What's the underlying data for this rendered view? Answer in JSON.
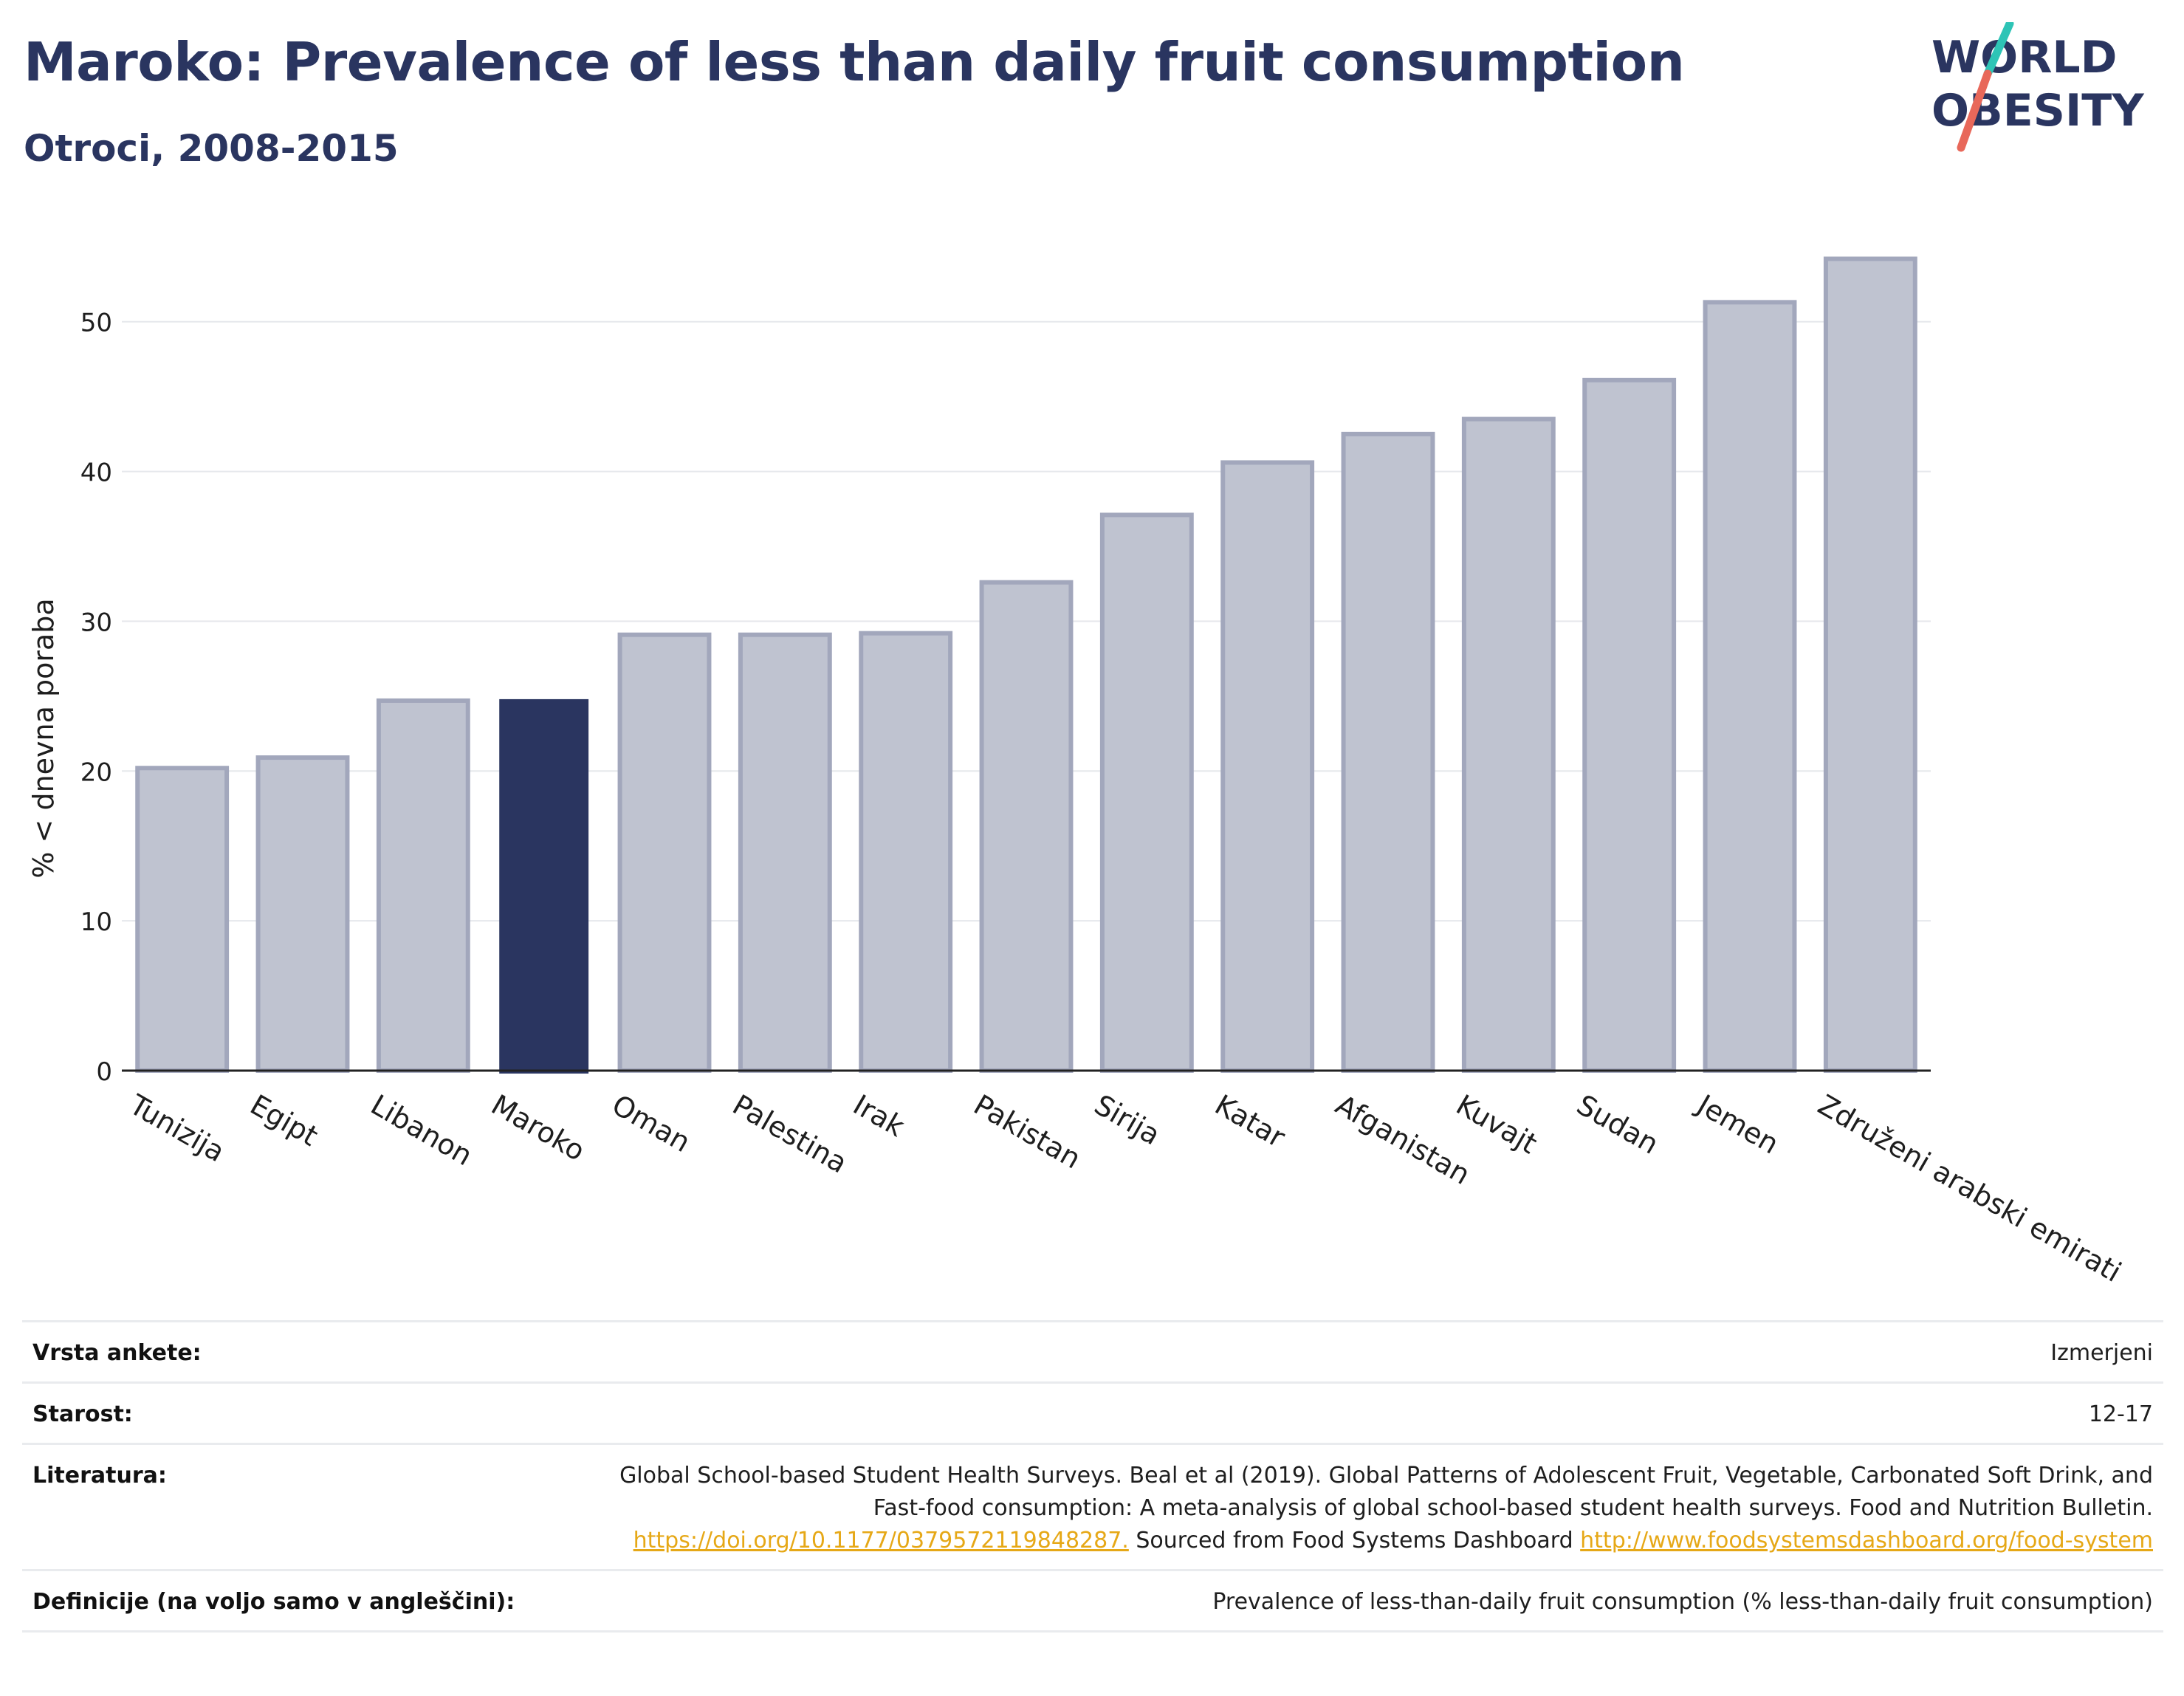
{
  "header": {
    "title": "Maroko: Prevalence of less than daily fruit consumption",
    "subtitle": "Otroci, 2008-2015"
  },
  "logo": {
    "line1": "WORLD",
    "line2": "OBESITY",
    "accent_teal": "#2ec4b6",
    "accent_red": "#e8685a"
  },
  "colors": {
    "highlight": "#2a3560",
    "bar": "#bfc3d0",
    "bar_edge": "#a2a7bc",
    "grid": "#e6e8ec",
    "axis": "#222222"
  },
  "chart_data": {
    "type": "bar",
    "ylabel": "% < dnevna poraba",
    "ylim": [
      0,
      56
    ],
    "yticks": [
      0,
      10,
      20,
      30,
      40,
      50
    ],
    "grid": true,
    "highlight": "Maroko",
    "categories": [
      "Tunizija",
      "Egipt",
      "Libanon",
      "Maroko",
      "Oman",
      "Palestina",
      "Irak",
      "Pakistan",
      "Sirija",
      "Katar",
      "Afganistan",
      "Kuvajt",
      "Sudan",
      "Jemen",
      "Združeni arabski emirati"
    ],
    "values": [
      20.2,
      20.9,
      24.7,
      24.8,
      29.1,
      29.1,
      29.2,
      32.6,
      37.1,
      40.6,
      42.5,
      43.5,
      46.1,
      51.3,
      54.2
    ]
  },
  "footer": {
    "survey_type": {
      "label": "Vrsta ankete:",
      "value": "Izmerjeni"
    },
    "age": {
      "label": "Starost:",
      "value": "12-17"
    },
    "literature": {
      "label": "Literatura:",
      "text1": "Global School-based Student Health Surveys. Beal et al (2019). Global Patterns of Adolescent Fruit, Vegetable, Carbonated Soft Drink, and Fast-food consumption: A meta-analysis of global school-based student health surveys. Food and Nutrition Bulletin. ",
      "link1": "https://doi.org/10.1177/0379572119848287.",
      "text2": " Sourced from Food Systems Dashboard ",
      "link2": "http://www.foodsystemsdashboard.org/food-system"
    },
    "definitions": {
      "label": "Definicije (na voljo samo v angleščini):",
      "value": "Prevalence of less-than-daily fruit consumption (% less-than-daily fruit consumption)"
    }
  }
}
